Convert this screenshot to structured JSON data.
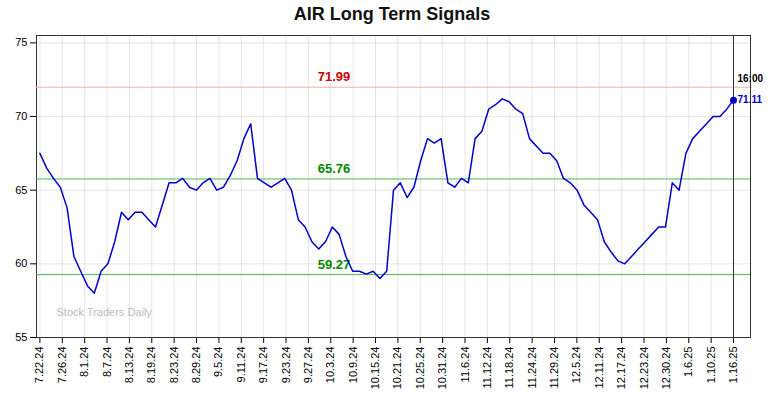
{
  "chart_data": {
    "type": "line",
    "title": "AIR Long Term Signals",
    "color": "#0000cc",
    "grid": true,
    "x": [
      0,
      1,
      2,
      3,
      4,
      5,
      6,
      7,
      8,
      9,
      10,
      11,
      12,
      13,
      14,
      15,
      16,
      17,
      18,
      19,
      20,
      21,
      22,
      23,
      24,
      25,
      26,
      27,
      28,
      29,
      30,
      31,
      32,
      33,
      34,
      35,
      36,
      37,
      38,
      39,
      40,
      41,
      42,
      43,
      44,
      45,
      46,
      47,
      48,
      49,
      50,
      51,
      52,
      53,
      54,
      55,
      56,
      57,
      58,
      59,
      60,
      61,
      62,
      63,
      64,
      65,
      66,
      67,
      68,
      69,
      70,
      71,
      72,
      73,
      74,
      75,
      76,
      77,
      78,
      79,
      80,
      81,
      82,
      83,
      84,
      85,
      86,
      87,
      88,
      89,
      90,
      91,
      92,
      93,
      94,
      95,
      96,
      97,
      98,
      99,
      100,
      101,
      102
    ],
    "values": [
      67.5,
      66.5,
      65.8,
      65.2,
      63.8,
      60.5,
      59.5,
      58.5,
      58.0,
      59.5,
      60.0,
      61.5,
      63.5,
      63.0,
      63.5,
      63.5,
      63.0,
      62.5,
      64.0,
      65.5,
      65.5,
      65.8,
      65.2,
      65.0,
      65.5,
      65.8,
      65.0,
      65.2,
      66.0,
      67.0,
      68.5,
      69.5,
      65.8,
      65.5,
      65.2,
      65.5,
      65.8,
      65.0,
      63.0,
      62.5,
      61.5,
      61.0,
      61.5,
      62.5,
      62.0,
      60.5,
      59.5,
      59.5,
      59.3,
      59.5,
      59.0,
      59.5,
      65.0,
      65.5,
      64.5,
      65.2,
      67.0,
      68.5,
      68.2,
      68.5,
      65.5,
      65.2,
      65.8,
      65.5,
      68.5,
      69.0,
      70.5,
      70.8,
      71.2,
      71.0,
      70.5,
      70.2,
      68.5,
      68.0,
      67.5,
      67.5,
      67.0,
      65.8,
      65.5,
      65.0,
      64.0,
      63.5,
      63.0,
      61.5,
      60.8,
      60.2,
      60.0,
      60.5,
      61.0,
      61.5,
      62.0,
      62.5,
      62.5,
      65.5,
      65.0,
      67.5,
      68.5,
      69.0,
      69.5,
      70.0,
      70.0,
      70.5,
      71.11
    ],
    "xlim": [
      -0.5,
      104.5
    ],
    "xticks": [
      {
        "value": 0,
        "label": "7.22.24"
      },
      {
        "value": 3.290322580645161,
        "label": "7.26.24"
      },
      {
        "value": 6.580645161290323,
        "label": "8.1.24"
      },
      {
        "value": 9.870967741935484,
        "label": "8.7.24"
      },
      {
        "value": 13.161290322580646,
        "label": "8.13.24"
      },
      {
        "value": 16.451612903225808,
        "label": "8.19.24"
      },
      {
        "value": 19.741935483870968,
        "label": "8.23.24"
      },
      {
        "value": 23.032258064516128,
        "label": "8.29.24"
      },
      {
        "value": 26.322580645161292,
        "label": "9.5.24"
      },
      {
        "value": 29.612903225806452,
        "label": "9.11.24"
      },
      {
        "value": 32.903225806451616,
        "label": "9.17.24"
      },
      {
        "value": 36.193548387096776,
        "label": "9.23.24"
      },
      {
        "value": 39.483870967741936,
        "label": "9.27.24"
      },
      {
        "value": 42.774193548387096,
        "label": "10.3.24"
      },
      {
        "value": 46.064516129032256,
        "label": "10.9.24"
      },
      {
        "value": 49.354838709677416,
        "label": "10.15.24"
      },
      {
        "value": 52.645161290322584,
        "label": "10.21.24"
      },
      {
        "value": 55.935483870967744,
        "label": "10.25.24"
      },
      {
        "value": 59.225806451612904,
        "label": "10.31.24"
      },
      {
        "value": 62.516129032258064,
        "label": "11.6.24"
      },
      {
        "value": 65.80645161290323,
        "label": "11.12.24"
      },
      {
        "value": 69.09677419354838,
        "label": "11.18.24"
      },
      {
        "value": 72.38709677419355,
        "label": "11.24.24"
      },
      {
        "value": 75.67741935483872,
        "label": "11.29.24"
      },
      {
        "value": 78.96774193548387,
        "label": "12.5.24"
      },
      {
        "value": 82.25806451612904,
        "label": "12.11.24"
      },
      {
        "value": 85.54838709677419,
        "label": "12.17.24"
      },
      {
        "value": 88.83870967741936,
        "label": "12.23.24"
      },
      {
        "value": 92.12903225806451,
        "label": "12.30.24"
      },
      {
        "value": 95.41935483870968,
        "label": "1.6.25"
      },
      {
        "value": 98.70967741935483,
        "label": "1.10.25"
      },
      {
        "value": 102,
        "label": "1.16.25"
      }
    ],
    "ylim": [
      55,
      75.5
    ],
    "yticks": [
      55,
      60,
      65,
      70,
      75
    ],
    "reference_lines": [
      {
        "value": 71.99,
        "label": "71.99",
        "color": "#ffaaaa",
        "label_color": "#cc0000"
      },
      {
        "value": 65.76,
        "label": "65.76",
        "color": "#44bb44",
        "label_color": "#008800"
      },
      {
        "value": 59.27,
        "label": "59.27",
        "color": "#44bb44",
        "label_color": "#008800"
      }
    ],
    "last_label": "16:00",
    "last_value_label": "71.11",
    "watermark": "Stock Traders Daily"
  }
}
